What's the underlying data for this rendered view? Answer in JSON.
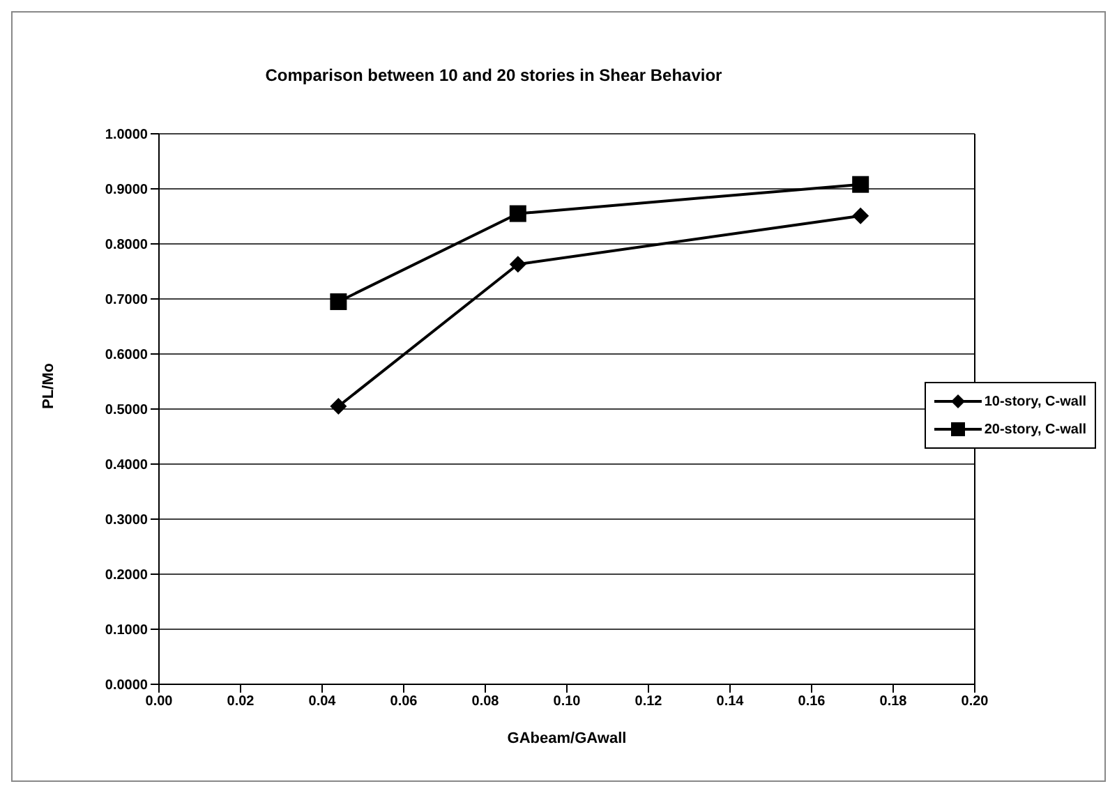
{
  "chart_data": {
    "type": "line",
    "title": "Comparison between 10 and 20 stories in Shear Behavior",
    "xlabel": "GAbeam/GAwall",
    "ylabel": "PL/Mo",
    "x": [
      0.044,
      0.088,
      0.172
    ],
    "series": [
      {
        "name": "10-story, C-wall",
        "color": "#000000",
        "marker": "diamond",
        "values": [
          0.505,
          0.763,
          0.851
        ]
      },
      {
        "name": "20-story, C-wall",
        "color": "#000000",
        "marker": "square",
        "values": [
          0.695,
          0.855,
          0.908
        ]
      }
    ],
    "xlim": [
      0,
      0.2
    ],
    "xticks": [
      {
        "value": 0,
        "label": "0.00"
      },
      {
        "value": 0.02,
        "label": "0.02"
      },
      {
        "value": 0.04,
        "label": "0.04"
      },
      {
        "value": 0.06,
        "label": "0.06"
      },
      {
        "value": 0.08,
        "label": "0.08"
      },
      {
        "value": 0.1,
        "label": "0.10"
      },
      {
        "value": 0.12,
        "label": "0.12"
      },
      {
        "value": 0.14,
        "label": "0.14"
      },
      {
        "value": 0.16,
        "label": "0.16"
      },
      {
        "value": 0.18,
        "label": "0.18"
      },
      {
        "value": 0.2,
        "label": "0.20"
      }
    ],
    "ylim": [
      0,
      1
    ],
    "yticks": [
      {
        "value": 0,
        "label": "0.0000"
      },
      {
        "value": 0.1,
        "label": "0.1000"
      },
      {
        "value": 0.2,
        "label": "0.2000"
      },
      {
        "value": 0.3,
        "label": "0.3000"
      },
      {
        "value": 0.4,
        "label": "0.4000"
      },
      {
        "value": 0.5,
        "label": "0.5000"
      },
      {
        "value": 0.6,
        "label": "0.6000"
      },
      {
        "value": 0.7,
        "label": "0.7000"
      },
      {
        "value": 0.8,
        "label": "0.8000"
      },
      {
        "value": 0.9,
        "label": "0.9000"
      },
      {
        "value": 1,
        "label": "1.0000"
      }
    ],
    "grid": "y",
    "legend": "right",
    "line_style": "solid"
  }
}
